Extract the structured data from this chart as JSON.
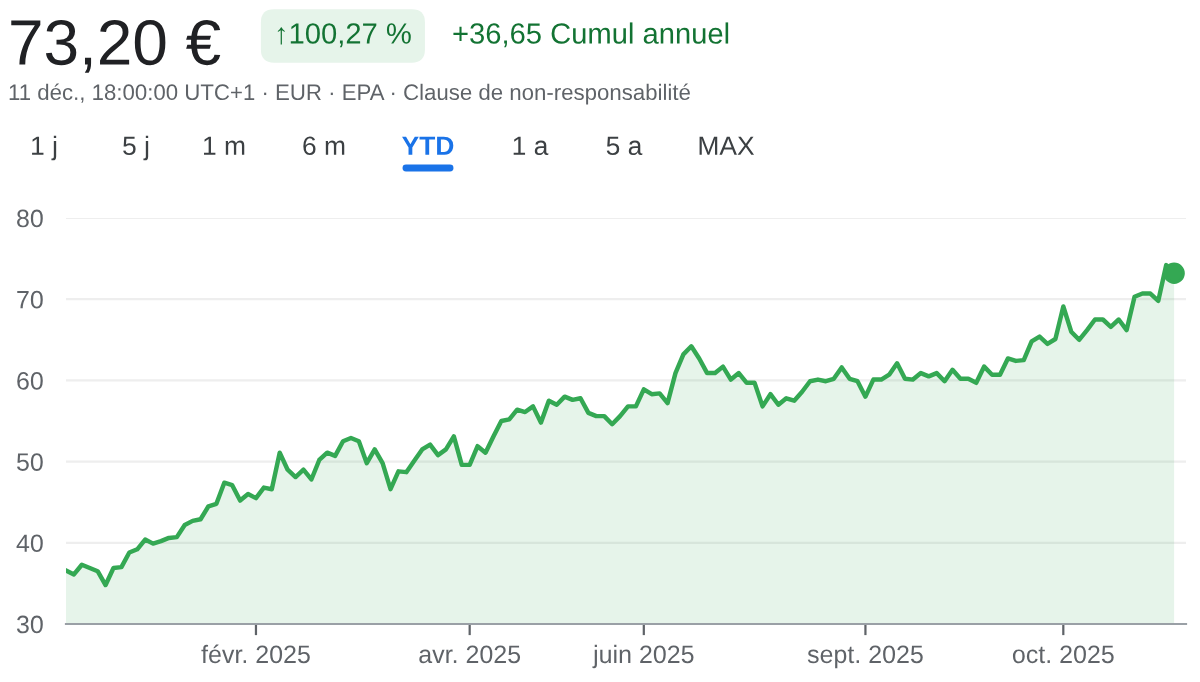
{
  "chart_data": {
    "type": "area",
    "title": "73,20 €",
    "subtitle": "11 déc., 18:00:00 UTC+1 · EUR · EPA · Clause de non-responsabilité",
    "annotations": [
      "↑100,27 %",
      "+36,65 Cumul annuel",
      "1 j",
      "5 j",
      "1 m",
      "6 m",
      "YTD",
      "1 a",
      "5 a",
      "MAX"
    ],
    "series": [
      {
        "color": "#34a853",
        "values": [
          36.6,
          36.1,
          37.3,
          36.9,
          36.5,
          34.8,
          36.9,
          37.0,
          38.8,
          39.2,
          40.4,
          39.9,
          40.2,
          40.6,
          40.7,
          42.2,
          42.7,
          42.9,
          44.5,
          44.8,
          47.4,
          47.1,
          45.2,
          46.0,
          45.5,
          46.8,
          46.6,
          51.1,
          49.0,
          48.1,
          49.0,
          47.8,
          50.2,
          51.1,
          50.7,
          52.5,
          52.9,
          52.5,
          49.8,
          51.5,
          49.8,
          46.6,
          48.8,
          48.7,
          50.1,
          51.5,
          52.1,
          50.8,
          51.5,
          53.1,
          49.6,
          49.6,
          51.9,
          51.1,
          53.1,
          55.0,
          55.2,
          56.4,
          56.1,
          56.8,
          54.8,
          57.5,
          57.0,
          58.0,
          57.6,
          57.8,
          56.0,
          55.6,
          55.6,
          54.6,
          55.6,
          56.8,
          56.8,
          58.9,
          58.3,
          58.4,
          57.2,
          60.9,
          63.2,
          64.2,
          62.7,
          60.9,
          60.9,
          61.7,
          60.1,
          60.9,
          59.7,
          59.7,
          56.8,
          58.3,
          57.0,
          57.8,
          57.5,
          58.6,
          59.9,
          60.1,
          59.9,
          60.2,
          61.6,
          60.2,
          59.9,
          58.0,
          60.1,
          60.1,
          60.7,
          62.1,
          60.2,
          60.1,
          60.9,
          60.5,
          60.9,
          59.9,
          61.3,
          60.2,
          60.2,
          59.7,
          61.7,
          60.7,
          60.7,
          62.7,
          62.4,
          62.5,
          64.8,
          65.4,
          64.5,
          65.1,
          69.1,
          66.0,
          65.0,
          66.2,
          67.5,
          67.5,
          66.6,
          67.5,
          66.2,
          70.3,
          70.7,
          70.7,
          69.8,
          74.2,
          73.2
        ]
      },
      {
        "type": "scatter",
        "color": "#34a853",
        "values": [
          null,
          null,
          null,
          null,
          null,
          null,
          null,
          null,
          null,
          null,
          null,
          null,
          null,
          null,
          null,
          null,
          null,
          null,
          null,
          null,
          null,
          null,
          null,
          null,
          null,
          null,
          null,
          null,
          null,
          null,
          null,
          null,
          null,
          null,
          null,
          null,
          null,
          null,
          null,
          null,
          null,
          null,
          null,
          null,
          null,
          null,
          null,
          null,
          null,
          null,
          null,
          null,
          null,
          null,
          null,
          null,
          null,
          null,
          null,
          null,
          null,
          null,
          null,
          null,
          null,
          null,
          null,
          null,
          null,
          null,
          null,
          null,
          null,
          null,
          null,
          null,
          null,
          null,
          null,
          null,
          null,
          null,
          null,
          null,
          null,
          null,
          null,
          null,
          null,
          null,
          null,
          null,
          null,
          null,
          null,
          null,
          null,
          null,
          null,
          null,
          null,
          null,
          null,
          null,
          null,
          null,
          null,
          null,
          null,
          null,
          null,
          null,
          null,
          null,
          null,
          null,
          null,
          null,
          null,
          null,
          null,
          null,
          null,
          null,
          null,
          null,
          null,
          null,
          null,
          null,
          null,
          null,
          null,
          null,
          null,
          null,
          null,
          null,
          null,
          null,
          73.2
        ]
      }
    ],
    "categories": [
      null,
      null,
      null,
      null,
      null,
      null,
      null,
      null,
      null,
      null,
      null,
      null,
      null,
      null,
      null,
      null,
      null,
      null,
      null,
      null,
      null,
      null,
      null,
      null,
      "févr. 2025",
      null,
      null,
      null,
      null,
      null,
      null,
      null,
      null,
      null,
      null,
      null,
      null,
      null,
      null,
      null,
      null,
      null,
      null,
      null,
      null,
      null,
      null,
      null,
      null,
      null,
      null,
      "avr. 2025",
      null,
      null,
      null,
      null,
      null,
      null,
      null,
      null,
      null,
      null,
      null,
      null,
      null,
      null,
      null,
      null,
      null,
      null,
      null,
      null,
      null,
      "juin 2025",
      null,
      null,
      null,
      null,
      null,
      null,
      null,
      null,
      null,
      null,
      null,
      null,
      null,
      null,
      null,
      null,
      null,
      null,
      null,
      null,
      null,
      null,
      null,
      null,
      null,
      null,
      null,
      "sept. 2025",
      null,
      null,
      null,
      null,
      null,
      null,
      null,
      null,
      null,
      null,
      null,
      null,
      null,
      null,
      null,
      null,
      null,
      null,
      null,
      null,
      null,
      null,
      null,
      null,
      "oct. 2025",
      null,
      null,
      null,
      null,
      null,
      null,
      null,
      null,
      null,
      null,
      null,
      null,
      null,
      null
    ],
    "ylim": [
      30,
      80
    ],
    "yticks": [
      30,
      40,
      50,
      60,
      70,
      80
    ],
    "grid": "y",
    "line_style": "solid"
  }
}
